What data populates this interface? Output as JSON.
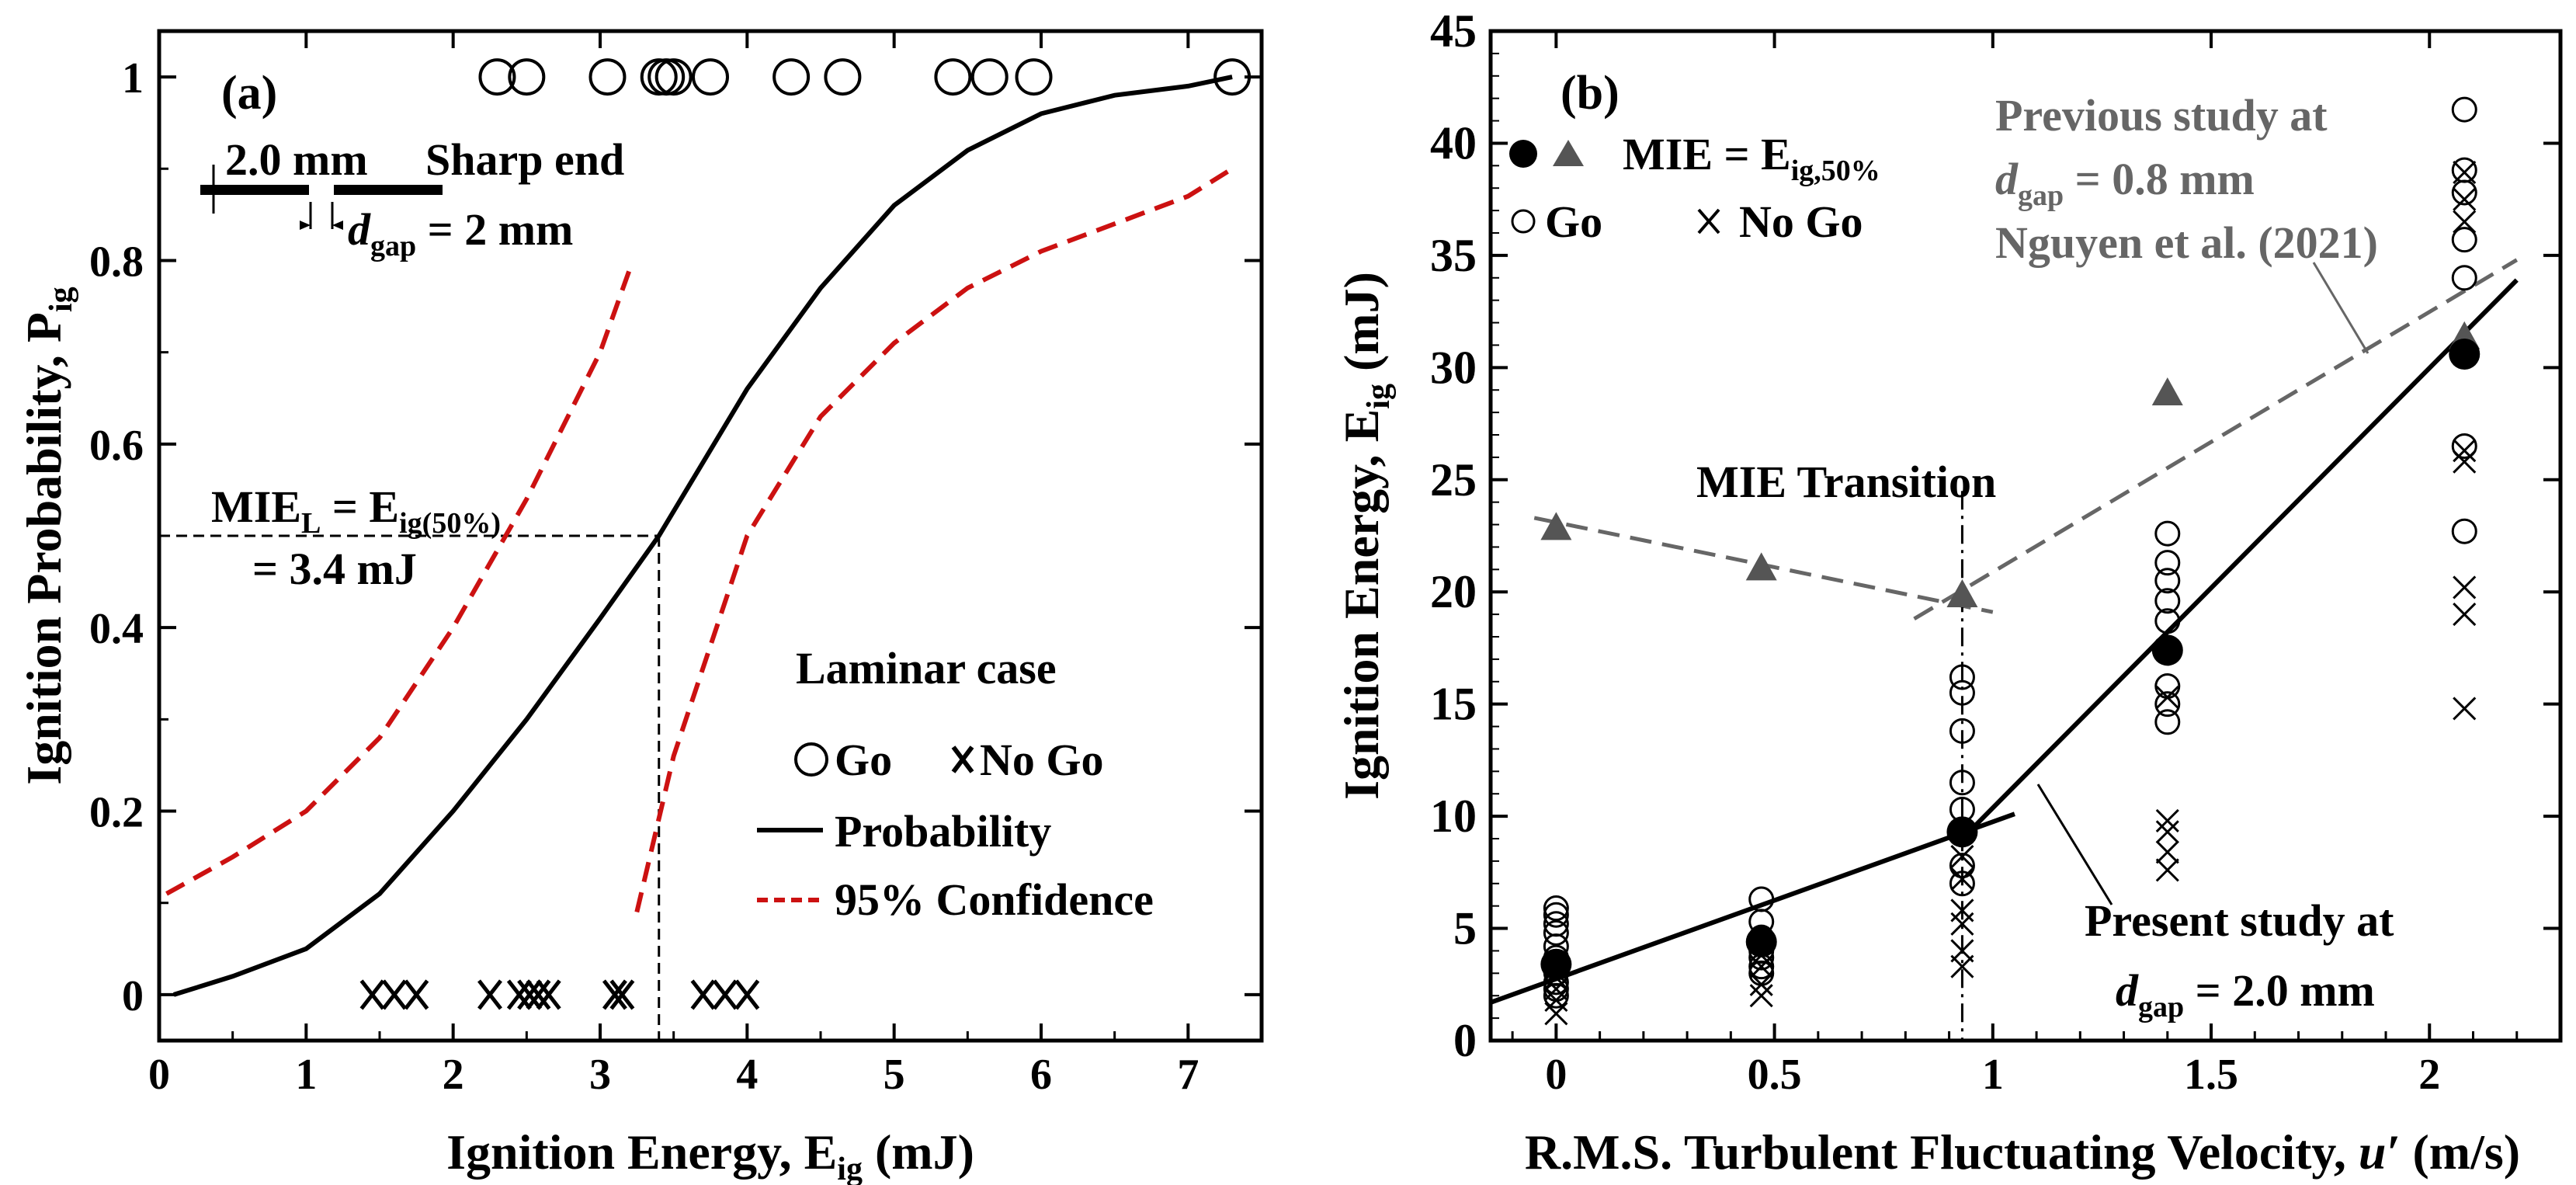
{
  "chart_data": [
    {
      "panel": "(a)",
      "type": "scatter",
      "xlabel": "Ignition Energy, E",
      "xlabel_sub": "ig",
      "xlabel_unit": " (mJ)",
      "ylabel": "Ignition Probability, P",
      "ylabel_sub": "ig",
      "xlim": [
        0,
        7.5
      ],
      "ylim": [
        -0.05,
        1.05
      ],
      "xticks": [
        0,
        1,
        2,
        3,
        4,
        5,
        6,
        7
      ],
      "yticks": [
        0,
        0.2,
        0.4,
        0.6,
        0.8,
        1
      ],
      "ytick_labels": [
        "0",
        "0.2",
        "0.4",
        "0.6",
        "0.8",
        "1"
      ],
      "go_x": [
        2.3,
        2.5,
        3.05,
        3.4,
        3.45,
        3.5,
        3.75,
        4.3,
        4.65,
        5.4,
        5.65,
        5.95,
        7.3
      ],
      "nogo_x": [
        1.45,
        1.6,
        1.75,
        2.25,
        2.45,
        2.52,
        2.58,
        2.65,
        3.1,
        3.15,
        3.7,
        3.85,
        4.0
      ],
      "probability_curve": {
        "x": [
          0.1,
          0.5,
          1.0,
          1.5,
          2.0,
          2.5,
          3.0,
          3.4,
          4.0,
          4.5,
          5.0,
          5.5,
          6.0,
          6.5,
          7.0,
          7.3
        ],
        "y": [
          0.0,
          0.02,
          0.05,
          0.11,
          0.2,
          0.3,
          0.41,
          0.5,
          0.66,
          0.77,
          0.86,
          0.92,
          0.96,
          0.98,
          0.99,
          1.0
        ]
      },
      "confidence_lower": {
        "x": [
          0.05,
          0.5,
          1.0,
          1.5,
          2.0,
          2.5,
          3.0,
          3.2
        ],
        "y": [
          0.11,
          0.15,
          0.2,
          0.28,
          0.4,
          0.54,
          0.7,
          0.79
        ]
      },
      "confidence_upper": {
        "x": [
          3.25,
          3.5,
          4.0,
          4.5,
          5.0,
          5.5,
          6.0,
          6.5,
          7.0,
          7.3
        ],
        "y": [
          0.09,
          0.26,
          0.5,
          0.63,
          0.71,
          0.77,
          0.81,
          0.84,
          0.87,
          0.9
        ]
      },
      "mie_x": 3.4,
      "mie_y": 0.5,
      "inset": {
        "left": "2.0 mm",
        "right": "Sharp end",
        "gap_label_pre": "d",
        "gap_label_sub": "gap",
        "gap_label_post": " = 2 mm"
      },
      "annotations": {
        "mie_line1": "MIE",
        "mie_line1_sub": "L",
        "mie_line1_eq": " = E",
        "mie_line1_eq_sub": "ig(50%)",
        "mie_line2": "= 3.4 mJ"
      },
      "legend": {
        "title": "Laminar case",
        "go": "Go",
        "nogo": "No Go",
        "probability": "Probability",
        "confidence": "95% Confidence"
      }
    },
    {
      "panel": "(b)",
      "type": "scatter",
      "xlabel": "R.M.S. Turbulent Fluctuating Velocity, ",
      "xlabel_var": "u′",
      "xlabel_unit": " (m/s)",
      "ylabel": "Ignition Energy, E",
      "ylabel_sub": "ig",
      "ylabel_unit": " (mJ)",
      "xlim": [
        -0.15,
        2.3
      ],
      "ylim": [
        0,
        45
      ],
      "xticks": [
        0,
        0.5,
        1,
        1.5,
        2
      ],
      "xtick_labels": [
        "0",
        "0.5",
        "1",
        "1.5",
        "2"
      ],
      "yticks": [
        0,
        5,
        10,
        15,
        20,
        25,
        30,
        35,
        40,
        45
      ],
      "go_points": [
        {
          "u": 0,
          "e": [
            2.0,
            2.3,
            2.6,
            3.0,
            3.4,
            3.7,
            4.2,
            4.8,
            5.2,
            5.6,
            5.9
          ]
        },
        {
          "u": 0.47,
          "e": [
            3.0,
            3.3,
            3.7,
            4.0,
            4.3,
            4.6,
            5.3,
            6.3
          ]
        },
        {
          "u": 0.93,
          "e": [
            7.0,
            7.8,
            9.3,
            10.3,
            11.5,
            13.8,
            15.5,
            16.2
          ]
        },
        {
          "u": 1.4,
          "e": [
            14.2,
            15.0,
            15.8,
            17.3,
            18.7,
            19.6,
            20.5,
            21.3,
            22.6
          ]
        },
        {
          "u": 2.08,
          "e": [
            22.7,
            26.5,
            34.0,
            35.7,
            37.8,
            38.8,
            41.5
          ]
        }
      ],
      "nogo_points": [
        {
          "u": 0,
          "e": [
            1.2,
            1.8,
            2.3,
            2.8,
            3.2
          ]
        },
        {
          "u": 0.47,
          "e": [
            2.0,
            2.5,
            3.3,
            3.8
          ]
        },
        {
          "u": 0.93,
          "e": [
            3.3,
            4.0,
            5.2,
            5.8,
            7.2,
            8.2
          ]
        },
        {
          "u": 1.4,
          "e": [
            7.6,
            8.4,
            9.3,
            9.8,
            15.3
          ]
        },
        {
          "u": 2.08,
          "e": [
            14.8,
            19.0,
            20.2,
            25.8,
            26.3,
            36.5,
            37.5,
            38.7
          ]
        }
      ],
      "mie_present": {
        "u": [
          0,
          0.47,
          0.93,
          1.4,
          2.08
        ],
        "e": [
          3.4,
          4.4,
          9.3,
          17.4,
          30.6
        ]
      },
      "mie_previous": {
        "u": [
          0,
          0.47,
          0.93,
          1.4,
          2.08
        ],
        "e": [
          22.8,
          21.0,
          19.8,
          28.8,
          31.3
        ]
      },
      "fit_low": {
        "u": [
          -0.15,
          1.05
        ],
        "e": [
          1.7,
          10.1
        ]
      },
      "fit_high": {
        "u": [
          0.93,
          2.2
        ],
        "e": [
          9.0,
          33.9
        ]
      },
      "prev_fit_low": {
        "u": [
          -0.05,
          1.0
        ],
        "e": [
          23.3,
          19.1
        ]
      },
      "prev_fit_high": {
        "u": [
          0.82,
          2.2
        ],
        "e": [
          18.8,
          34.8
        ]
      },
      "transition_u": 0.93,
      "annotations": {
        "mie_transition": "MIE Transition",
        "previous_line1": "Previous study at",
        "previous_line2_pre": "d",
        "previous_line2_sub": "gap",
        "previous_line2_post": " = 0.8 mm",
        "previous_line3": "Nguyen et al. (2021)",
        "present_line1": "Present study at",
        "present_line2_pre": "d",
        "present_line2_sub": "gap",
        "present_line2_post": " = 2.0 mm"
      },
      "legend": {
        "mie": "MIE = E",
        "mie_sub": "ig,50%",
        "go": "Go",
        "nogo": "No Go"
      }
    }
  ],
  "colors": {
    "axis": "#000000",
    "confidence": "#cc1111",
    "previous": "#666666",
    "marker_previous": "#555555"
  }
}
